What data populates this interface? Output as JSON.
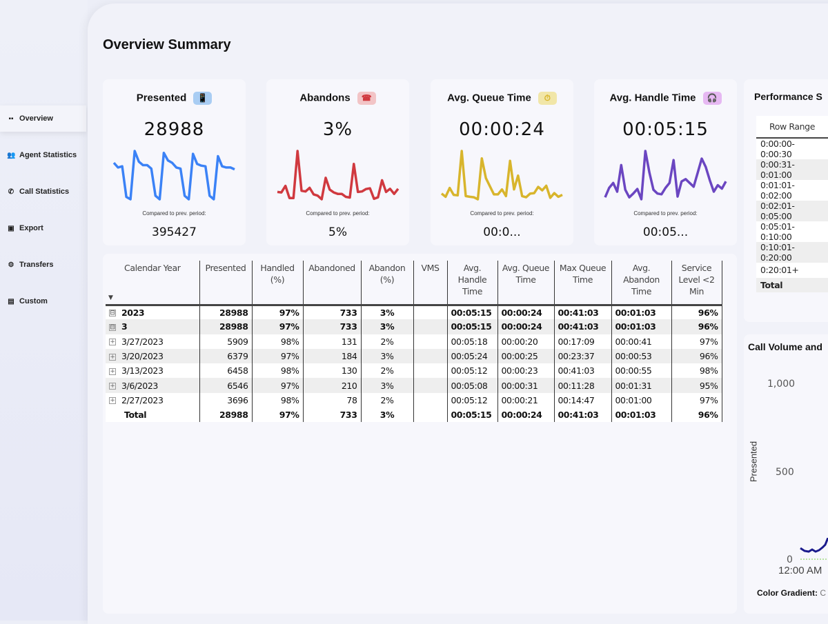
{
  "sidebar": {
    "items": [
      {
        "label": "Overview",
        "icon": "grid-icon",
        "glyph": "▪▪"
      },
      {
        "label": "Agent Statistics",
        "icon": "users-icon",
        "glyph": "👥"
      },
      {
        "label": "Call Statistics",
        "icon": "phone-icon",
        "glyph": "✆"
      },
      {
        "label": "Export",
        "icon": "export-icon",
        "glyph": "▣"
      },
      {
        "label": "Transfers",
        "icon": "gear-icon",
        "glyph": "⚙"
      },
      {
        "label": "Custom",
        "icon": "document-icon",
        "glyph": "▤"
      }
    ]
  },
  "page_title": "Overview Summary",
  "kpis": [
    {
      "title": "Presented",
      "value": "28988",
      "compare_label": "Compared to prev. period:",
      "prev": "395427",
      "color": "#3b82f6",
      "badge_bg": "#a9cdf3",
      "glyph": "📱",
      "spark": [
        220,
        200,
        205,
        75,
        65,
        270,
        225,
        210,
        210,
        195,
        80,
        65,
        262,
        230,
        220,
        200,
        195,
        80,
        65,
        258,
        215,
        208,
        205,
        80,
        65,
        248,
        205,
        200,
        200,
        192
      ]
    },
    {
      "title": "Abandons",
      "value": "3%",
      "compare_label": "Compared to prev. period:",
      "prev": "5%",
      "color": "#d0393f",
      "badge_bg": "#f2c4c6",
      "glyph": "☎",
      "spark": [
        90,
        88,
        115,
        65,
        65,
        258,
        95,
        92,
        107,
        80,
        75,
        60,
        148,
        100,
        88,
        82,
        82,
        70,
        67,
        205,
        90,
        92,
        102,
        105,
        62,
        68,
        138,
        90,
        103,
        82,
        103
      ]
    },
    {
      "title": "Avg. Queue Time",
      "value": "00:00:24",
      "compare_label": "Compared to prev. period:",
      "prev": "00:0...",
      "color": "#d8b52c",
      "badge_bg": "#f1e6a8",
      "glyph": "⏱",
      "spark": [
        105,
        92,
        128,
        100,
        98,
        278,
        95,
        92,
        90,
        82,
        248,
        168,
        135,
        102,
        102,
        122,
        95,
        238,
        122,
        178,
        95,
        90,
        105,
        107,
        132,
        118,
        137,
        88,
        107,
        92,
        100
      ]
    },
    {
      "title": "Avg. Handle Time",
      "value": "00:05:15",
      "compare_label": "Compared to prev. period:",
      "prev": "00:05...",
      "color": "#6b46c1",
      "badge_bg": "#e6b8f2",
      "glyph": "🎧",
      "spark": [
        140,
        165,
        178,
        155,
        225,
        160,
        140,
        150,
        162,
        135,
        262,
        205,
        160,
        150,
        148,
        165,
        178,
        238,
        142,
        182,
        188,
        178,
        168,
        205,
        242,
        220,
        185,
        155,
        172,
        163,
        182
      ]
    }
  ],
  "table": {
    "headers": [
      "Calendar Year",
      "Presented",
      "Handled (%)",
      "Abandoned",
      "Abandon (%)",
      "VMS",
      "Avg. Handle Time",
      "Avg. Queue Time",
      "Max Queue Time",
      "Avg. Abandon Time",
      "Service Level <2 Min"
    ],
    "rows": [
      {
        "cells": [
          "2023",
          "28988",
          "97%",
          "733",
          "3%",
          "",
          "00:05:15",
          "00:00:24",
          "00:41:03",
          "00:01:03",
          "96%"
        ],
        "expand": "⊟"
      },
      {
        "cells": [
          "3",
          "28988",
          "97%",
          "733",
          "3%",
          "",
          "00:05:15",
          "00:00:24",
          "00:41:03",
          "00:01:03",
          "96%"
        ],
        "expand": "⊟"
      },
      {
        "cells": [
          "3/27/2023",
          "5909",
          "98%",
          "131",
          "2%",
          "",
          "00:05:18",
          "00:00:20",
          "00:17:09",
          "00:00:41",
          "97%"
        ],
        "expand": "+"
      },
      {
        "cells": [
          "3/20/2023",
          "6379",
          "97%",
          "184",
          "3%",
          "",
          "00:05:24",
          "00:00:25",
          "00:23:37",
          "00:00:53",
          "96%"
        ],
        "expand": "+"
      },
      {
        "cells": [
          "3/13/2023",
          "6458",
          "98%",
          "130",
          "2%",
          "",
          "00:05:12",
          "00:00:23",
          "00:41:03",
          "00:00:55",
          "98%"
        ],
        "expand": "+"
      },
      {
        "cells": [
          "3/6/2023",
          "6546",
          "97%",
          "210",
          "3%",
          "",
          "00:05:08",
          "00:00:31",
          "00:11:28",
          "00:01:31",
          "95%"
        ],
        "expand": "+"
      },
      {
        "cells": [
          "2/27/2023",
          "3696",
          "98%",
          "78",
          "2%",
          "",
          "00:05:12",
          "00:00:21",
          "00:14:47",
          "00:01:00",
          "97%"
        ],
        "expand": "+"
      }
    ],
    "total": [
      "Total",
      "28988",
      "97%",
      "733",
      "3%",
      "",
      "00:05:15",
      "00:00:24",
      "00:41:03",
      "00:01:03",
      "96%"
    ]
  },
  "performance": {
    "title": "Performance S",
    "header": "Row Range",
    "rows": [
      "0:00:00-0:00:30",
      "0:00:31-0:01:00",
      "0:01:01-0:02:00",
      "0:02:01-0:05:00",
      "0:05:01-0:10:00",
      "0:10:01-0:20:00",
      "0:20:01+"
    ],
    "total": "Total"
  },
  "call_volume": {
    "title": "Call Volume and",
    "ylabel": "Presented",
    "yticks": [
      "1,000",
      "500",
      "0"
    ],
    "xtick": "12:00 AM",
    "legend_label": "Color Gradient:",
    "legend_value": "C"
  }
}
